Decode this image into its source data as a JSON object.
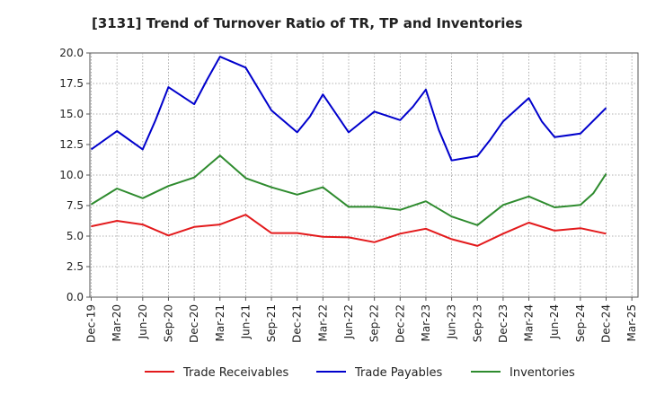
{
  "chart_data": {
    "type": "line",
    "title": "[3131]  Trend of Turnover Ratio of TR, TP and Inventories",
    "xlabel": "",
    "ylabel": "",
    "ylim": [
      0,
      20
    ],
    "yticks": [
      "0.0",
      "2.5",
      "5.0",
      "7.5",
      "10.0",
      "12.5",
      "15.0",
      "17.5",
      "20.0"
    ],
    "ytick_values": [
      0,
      2.5,
      5,
      7.5,
      10,
      12.5,
      15,
      17.5,
      20
    ],
    "x": [
      "Dec-19",
      "Mar-20",
      "Jun-20",
      "Sep-20",
      "Dec-20",
      "Mar-21",
      "Jun-21",
      "Sep-21",
      "Dec-21",
      "Mar-22",
      "Jun-22",
      "Sep-22",
      "Dec-22",
      "Mar-23",
      "Jun-23",
      "Sep-23",
      "Dec-23",
      "Mar-24",
      "Jun-24",
      "Sep-24",
      "Dec-24",
      "Mar-25"
    ],
    "grid": true,
    "legend_position": "bottom",
    "series": [
      {
        "name": "Trade Receivables",
        "color": "#e31a1c",
        "points": [
          [
            0,
            5.8
          ],
          [
            1,
            6.25
          ],
          [
            2,
            5.95
          ],
          [
            3,
            5.05
          ],
          [
            4,
            5.75
          ],
          [
            5,
            5.95
          ],
          [
            6,
            6.75
          ],
          [
            7,
            5.25
          ],
          [
            8,
            5.25
          ],
          [
            9,
            4.95
          ],
          [
            10,
            4.9
          ],
          [
            11,
            4.5
          ],
          [
            12,
            5.2
          ],
          [
            13,
            5.6
          ],
          [
            14,
            4.75
          ],
          [
            15,
            4.2
          ],
          [
            16,
            5.2
          ],
          [
            17,
            6.1
          ],
          [
            18,
            5.45
          ],
          [
            19,
            5.65
          ],
          [
            20,
            5.2
          ]
        ]
      },
      {
        "name": "Trade Payables",
        "color": "#0000cc",
        "points": [
          [
            0,
            12.1
          ],
          [
            1,
            13.6
          ],
          [
            2,
            12.1
          ],
          [
            2.5,
            14.5
          ],
          [
            3,
            17.2
          ],
          [
            4,
            15.8
          ],
          [
            4.5,
            17.8
          ],
          [
            5,
            19.7
          ],
          [
            6,
            18.8
          ],
          [
            7,
            15.3
          ],
          [
            8,
            13.5
          ],
          [
            8.5,
            14.8
          ],
          [
            9,
            16.6
          ],
          [
            10,
            13.5
          ],
          [
            11,
            15.2
          ],
          [
            12,
            14.5
          ],
          [
            12.5,
            15.6
          ],
          [
            13,
            17.0
          ],
          [
            13.5,
            13.7
          ],
          [
            14,
            11.2
          ],
          [
            15,
            11.55
          ],
          [
            15.5,
            12.9
          ],
          [
            16,
            14.4
          ],
          [
            17,
            16.3
          ],
          [
            17.5,
            14.4
          ],
          [
            18,
            13.1
          ],
          [
            19,
            13.4
          ],
          [
            20,
            15.5
          ]
        ]
      },
      {
        "name": "Inventories",
        "color": "#2e8b2e",
        "points": [
          [
            0,
            7.6
          ],
          [
            1,
            8.9
          ],
          [
            2,
            8.1
          ],
          [
            3,
            9.1
          ],
          [
            4,
            9.8
          ],
          [
            5,
            11.6
          ],
          [
            6,
            9.75
          ],
          [
            7,
            9.0
          ],
          [
            8,
            8.4
          ],
          [
            9,
            9.0
          ],
          [
            10,
            7.4
          ],
          [
            11,
            7.4
          ],
          [
            12,
            7.15
          ],
          [
            13,
            7.85
          ],
          [
            14,
            6.6
          ],
          [
            15,
            5.9
          ],
          [
            16,
            7.55
          ],
          [
            17,
            8.25
          ],
          [
            18,
            7.35
          ],
          [
            19,
            7.55
          ],
          [
            19.5,
            8.5
          ],
          [
            20,
            10.1
          ]
        ]
      }
    ]
  }
}
